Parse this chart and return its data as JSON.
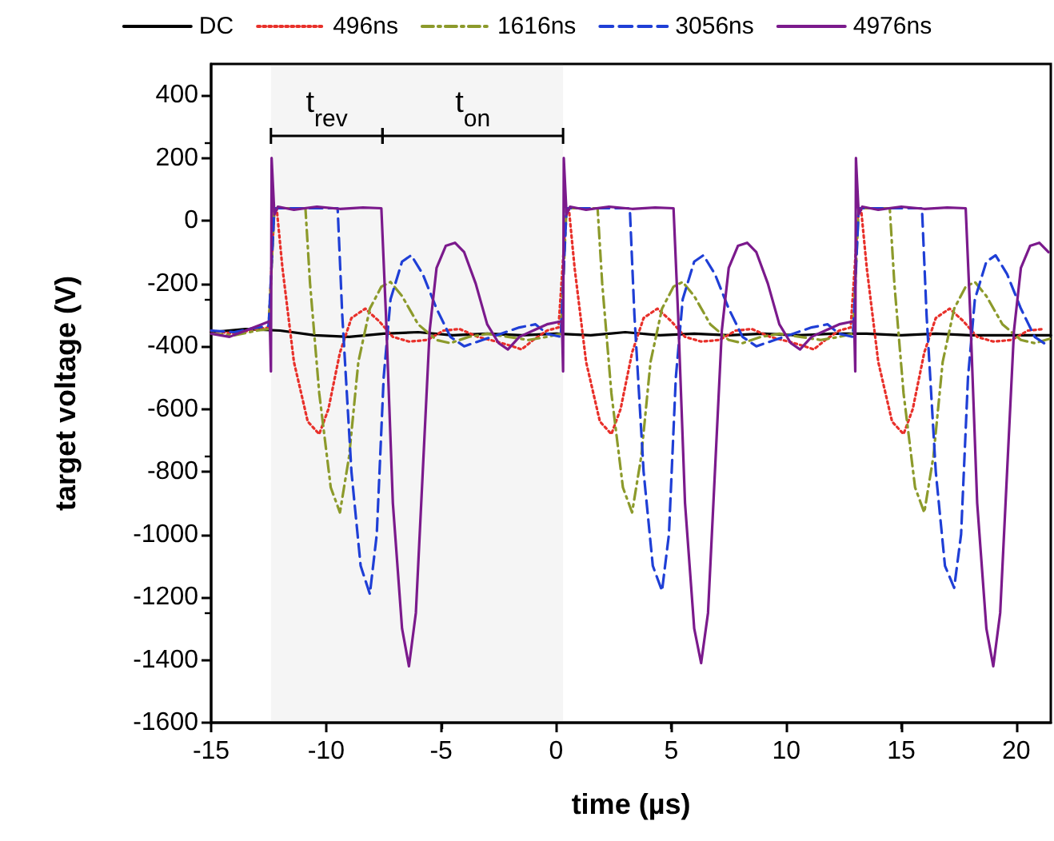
{
  "chart_data": {
    "type": "line",
    "xlabel": "time (µs)",
    "ylabel": "target voltage (V)",
    "xlim": [
      -15,
      21.5
    ],
    "xticks": [
      -15,
      -10,
      -5,
      0,
      5,
      10,
      15,
      20
    ],
    "ylim": [
      -1600,
      500
    ],
    "yticks": [
      -1600,
      -1400,
      -1200,
      -1000,
      -800,
      -600,
      -400,
      -200,
      0,
      200,
      400
    ],
    "legend": "top",
    "grid": false,
    "marker": "none",
    "bands": [
      {
        "axis": "x",
        "from": -12.4,
        "to": -7.55,
        "label": "t$_{rev}$"
      },
      {
        "axis": "x",
        "from": -7.55,
        "to": 0.3,
        "label": "t$_{on}$"
      }
    ],
    "series": [
      {
        "name": "DC",
        "color": "#000000",
        "line_style": "solid",
        "x": [
          -15,
          -13.5,
          -12,
          -10.5,
          -9,
          -7.5,
          -6,
          -4.5,
          -3,
          -1.5,
          0,
          1.5,
          3,
          4.5,
          6,
          7.5,
          9,
          10.5,
          12,
          13.5,
          15,
          16.5,
          18,
          19.5,
          21.5
        ],
        "values": [
          -355,
          -345,
          -350,
          -365,
          -370,
          -360,
          -355,
          -365,
          -360,
          -365,
          -360,
          -365,
          -355,
          -365,
          -360,
          -365,
          -360,
          -365,
          -360,
          -360,
          -365,
          -360,
          -365,
          -365,
          -365
        ]
      },
      {
        "name": "496ns",
        "color": "#e8302a",
        "line_style": "dotted",
        "x": [
          -15,
          -14,
          -13,
          -12.5,
          -12.25,
          -12.15,
          -11.9,
          -11.4,
          -10.8,
          -10.3,
          -9.9,
          -9.4,
          -8.9,
          -8.3,
          -7.7,
          -7.1,
          -6.4,
          -5.6,
          -4.9,
          -4.2,
          -3.4,
          -2.6,
          -1.9,
          -1.5,
          -1.0,
          -0.4,
          0.1,
          0.45,
          0.55,
          0.8,
          1.3,
          1.9,
          2.4,
          2.8,
          3.3,
          3.8,
          4.4,
          5.0,
          5.6,
          6.3,
          7.1,
          7.8,
          8.5,
          9.3,
          10.1,
          10.8,
          11.2,
          11.7,
          12.3,
          12.8,
          13.15,
          13.25,
          13.5,
          14.0,
          14.6,
          15.1,
          15.5,
          16.0,
          16.5,
          17.1,
          17.7,
          18.3,
          19.0,
          19.8,
          20.5,
          21.2
        ],
        "values": [
          -350,
          -360,
          -345,
          -340,
          40,
          40,
          -150,
          -450,
          -640,
          -680,
          -600,
          -420,
          -310,
          -280,
          -320,
          -370,
          -385,
          -380,
          -350,
          -345,
          -370,
          -385,
          -400,
          -410,
          -380,
          -350,
          -340,
          40,
          40,
          -150,
          -450,
          -640,
          -680,
          -600,
          -420,
          -310,
          -280,
          -320,
          -370,
          -385,
          -380,
          -350,
          -345,
          -370,
          -385,
          -400,
          -410,
          -380,
          -350,
          -340,
          40,
          40,
          -150,
          -450,
          -640,
          -680,
          -600,
          -420,
          -310,
          -280,
          -320,
          -370,
          -385,
          -380,
          -350,
          -345
        ]
      },
      {
        "name": "1616ns",
        "color": "#8c9a2b",
        "line_style": "dashdot",
        "x": [
          -15,
          -14,
          -13,
          -12.5,
          -12.25,
          -10.9,
          -10.7,
          -10.3,
          -9.8,
          -9.4,
          -9.0,
          -8.6,
          -8.1,
          -7.6,
          -7.2,
          -6.7,
          -6.0,
          -5.2,
          -4.6,
          -3.8,
          -3.0,
          -2.1,
          -1.2,
          -0.4,
          0.2,
          0.45,
          1.8,
          2.0,
          2.4,
          2.9,
          3.3,
          3.7,
          4.1,
          4.6,
          5.1,
          5.5,
          6.0,
          6.7,
          7.5,
          8.1,
          8.9,
          9.7,
          10.6,
          11.5,
          12.3,
          12.9,
          13.15,
          14.5,
          14.7,
          15.1,
          15.6,
          16.0,
          16.4,
          16.8,
          17.3,
          17.8,
          18.2,
          18.7,
          19.4,
          20.2,
          20.8,
          21.5
        ],
        "values": [
          -360,
          -365,
          -350,
          -345,
          40,
          40,
          -200,
          -550,
          -850,
          -930,
          -750,
          -450,
          -280,
          -210,
          -195,
          -240,
          -330,
          -380,
          -390,
          -370,
          -360,
          -370,
          -380,
          -370,
          -360,
          40,
          40,
          -200,
          -550,
          -850,
          -930,
          -750,
          -450,
          -280,
          -210,
          -195,
          -240,
          -330,
          -380,
          -390,
          -370,
          -360,
          -370,
          -380,
          -370,
          -360,
          40,
          40,
          -200,
          -550,
          -850,
          -930,
          -750,
          -450,
          -280,
          -210,
          -195,
          -240,
          -330,
          -380,
          -390,
          -375
        ]
      },
      {
        "name": "3056ns",
        "color": "#1f3fd6",
        "line_style": "dashed",
        "x": [
          -15,
          -14,
          -13,
          -12.5,
          -12.25,
          -9.5,
          -9.3,
          -8.9,
          -8.5,
          -8.1,
          -7.8,
          -7.5,
          -7.2,
          -6.7,
          -6.3,
          -5.8,
          -5.2,
          -4.6,
          -4.0,
          -3.2,
          -2.4,
          -1.6,
          -0.9,
          -0.4,
          0.2,
          0.45,
          3.2,
          3.4,
          3.8,
          4.2,
          4.6,
          4.9,
          5.2,
          5.5,
          6.0,
          6.4,
          6.9,
          7.5,
          8.1,
          8.7,
          9.5,
          10.3,
          11.1,
          11.8,
          12.3,
          12.9,
          13.15,
          15.9,
          16.1,
          16.5,
          16.9,
          17.3,
          17.6,
          17.9,
          18.2,
          18.7,
          19.1,
          19.6,
          20.2,
          20.8,
          21.4
        ],
        "values": [
          -350,
          -355,
          -340,
          -335,
          40,
          40,
          -300,
          -800,
          -1100,
          -1190,
          -1000,
          -500,
          -250,
          -130,
          -110,
          -170,
          -280,
          -370,
          -400,
          -380,
          -360,
          -340,
          -330,
          -360,
          -370,
          40,
          40,
          -300,
          -800,
          -1100,
          -1180,
          -1000,
          -500,
          -250,
          -130,
          -110,
          -170,
          -280,
          -370,
          -400,
          -380,
          -360,
          -340,
          -330,
          -360,
          -370,
          40,
          40,
          -300,
          -800,
          -1100,
          -1170,
          -1000,
          -500,
          -250,
          -130,
          -110,
          -170,
          -280,
          -370,
          -400
        ]
      },
      {
        "name": "4976ns",
        "color": "#7b1a8c",
        "line_style": "solid",
        "x": [
          -15,
          -14.2,
          -13.5,
          -12.8,
          -12.45,
          -12.4,
          -12.37,
          -12.25,
          -12.1,
          -11.4,
          -10.4,
          -9.4,
          -8.4,
          -7.6,
          -7.4,
          -7.1,
          -6.7,
          -6.4,
          -6.1,
          -5.8,
          -5.5,
          -5.2,
          -4.8,
          -4.4,
          -4.0,
          -3.5,
          -3.0,
          -2.5,
          -2.1,
          -1.6,
          -1.0,
          -0.4,
          0.25,
          0.3,
          0.33,
          0.45,
          0.6,
          1.3,
          2.3,
          3.3,
          4.3,
          5.1,
          5.3,
          5.6,
          6.0,
          6.3,
          6.6,
          6.9,
          7.2,
          7.5,
          7.9,
          8.3,
          8.7,
          9.2,
          9.7,
          10.2,
          10.6,
          11.1,
          11.7,
          12.3,
          12.95,
          13.0,
          13.03,
          13.15,
          13.3,
          14,
          15,
          16,
          17,
          17.8,
          18.0,
          18.3,
          18.7,
          19.0,
          19.3,
          19.6,
          19.9,
          20.2,
          20.6,
          21.0,
          21.4
        ],
        "values": [
          -360,
          -370,
          -350,
          -330,
          -320,
          -480,
          200,
          20,
          45,
          35,
          45,
          38,
          42,
          40,
          -300,
          -900,
          -1300,
          -1420,
          -1250,
          -800,
          -350,
          -150,
          -80,
          -70,
          -100,
          -200,
          -330,
          -390,
          -410,
          -370,
          -350,
          -330,
          -320,
          -480,
          200,
          20,
          45,
          35,
          45,
          38,
          42,
          40,
          -300,
          -900,
          -1300,
          -1410,
          -1250,
          -800,
          -350,
          -150,
          -80,
          -70,
          -100,
          -200,
          -330,
          -390,
          -410,
          -370,
          -350,
          -330,
          -320,
          -480,
          200,
          20,
          45,
          35,
          45,
          38,
          42,
          40,
          -300,
          -900,
          -1300,
          -1420,
          -1250,
          -800,
          -350,
          -150,
          -80,
          -70,
          -100
        ]
      }
    ]
  }
}
